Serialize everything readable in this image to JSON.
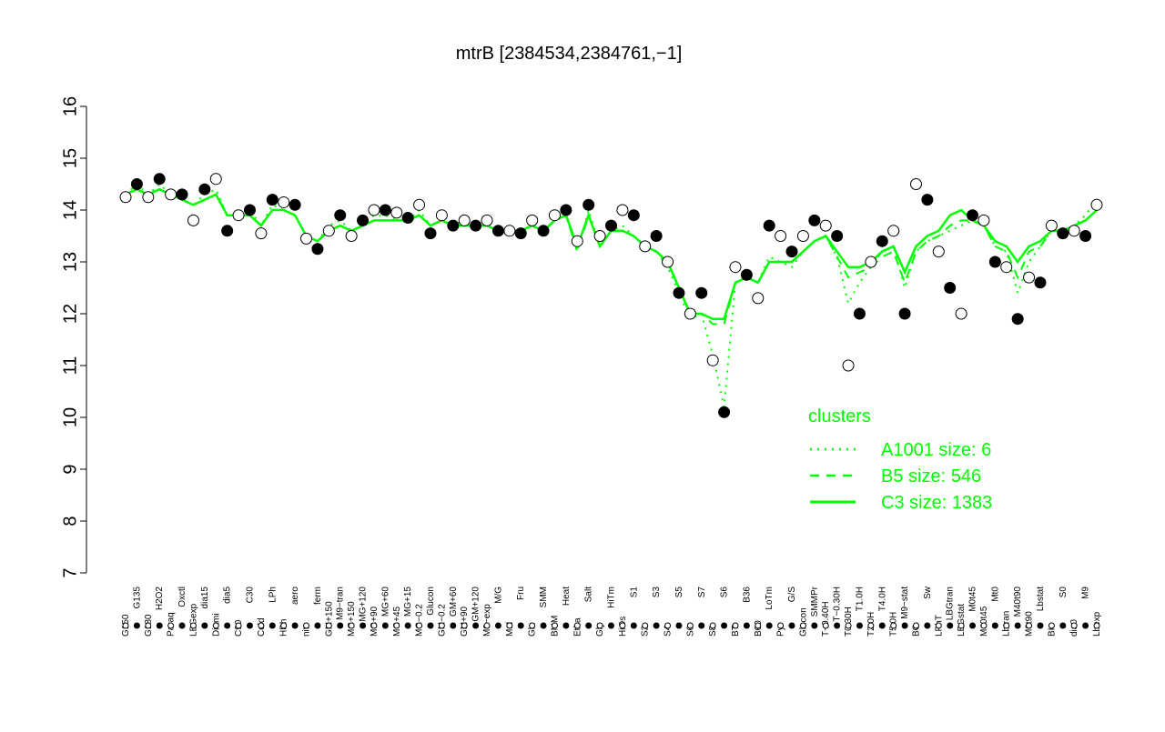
{
  "chart_data": {
    "type": "line",
    "title": "mtrB [2384534,2384761,−1]",
    "categories": [
      "G150",
      "G135",
      "G180",
      "H2O2",
      "Paraq",
      "Oxctl",
      "LBGexp",
      "dia15",
      "Diami",
      "dia5",
      "C90",
      "C30",
      "Cold",
      "LPh",
      "HPh",
      "aero",
      "nit",
      "ferm",
      "GM+150",
      "M9−tran",
      "MG+150",
      "MG+120",
      "MG+90",
      "MG+60",
      "MG+45",
      "MG+15",
      "MG−0.2",
      "Glucon",
      "GM−0.2",
      "GM+60",
      "GM+90",
      "GM+120",
      "M9−exp",
      "M/G",
      "Mal",
      "Fru",
      "Glu",
      "SMM",
      "BMM",
      "Heat",
      "Etha",
      "Salt",
      "Gly",
      "HiTm",
      "HiOs",
      "S1",
      "S2",
      "S3",
      "S4",
      "S5",
      "S6",
      "S7",
      "S8",
      "S6",
      "BT",
      "B36",
      "B60",
      "LoTm",
      "Pyr",
      "G/S",
      "Glucon",
      "SMMPr",
      "T−0.40H",
      "T−0.30H",
      "T0.30H",
      "T1.0H",
      "T2.0H",
      "T4.0H",
      "T5.0H",
      "M9−stat",
      "BC",
      "Sw",
      "LPhT",
      "LBGtran",
      "LBGstat",
      "M0t45",
      "M40t45",
      "Mt0",
      "Lbtran",
      "M40t90",
      "M0t90",
      "Lbstat",
      "BI",
      "S0",
      "dia0",
      "M9",
      "Lbexp"
    ],
    "values": [
      14.25,
      14.5,
      14.25,
      14.6,
      14.3,
      14.3,
      13.8,
      14.4,
      14.6,
      13.6,
      13.9,
      14.0,
      13.55,
      14.2,
      14.15,
      14.1,
      13.45,
      13.25,
      13.6,
      13.9,
      13.5,
      13.8,
      14.0,
      14.0,
      13.95,
      13.85,
      14.1,
      13.55,
      13.9,
      13.7,
      13.8,
      13.7,
      13.8,
      13.6,
      13.6,
      13.55,
      13.8,
      13.6,
      13.9,
      14.0,
      13.4,
      14.1,
      13.5,
      13.7,
      14.0,
      13.9,
      13.3,
      13.5,
      13.0,
      12.4,
      12.0,
      12.4,
      11.1,
      10.1,
      12.9,
      12.75,
      12.3,
      13.7,
      13.5,
      13.2,
      13.5,
      13.8,
      13.7,
      13.5,
      11.0,
      12.0,
      13.0,
      13.4,
      13.6,
      12.0,
      14.5,
      14.2,
      13.2,
      12.5,
      12.0,
      13.9,
      13.8,
      13.0,
      12.9,
      11.9,
      12.7,
      12.6,
      13.7,
      13.55,
      13.6,
      13.5,
      14.1
    ],
    "legend_title": "clusters",
    "series": [
      {
        "name": "A1001 size: 6",
        "color": "#00ff00",
        "dash": "dotted",
        "values": [
          14.3,
          14.5,
          14.3,
          14.5,
          14.3,
          14.2,
          14.1,
          14.3,
          14.4,
          13.9,
          13.9,
          14.0,
          13.7,
          14.1,
          14.0,
          13.9,
          13.5,
          13.4,
          13.7,
          13.8,
          13.6,
          13.7,
          13.9,
          13.9,
          13.8,
          13.8,
          14.0,
          13.7,
          13.8,
          13.7,
          13.8,
          13.7,
          13.7,
          13.6,
          13.6,
          13.6,
          13.7,
          13.6,
          13.8,
          13.9,
          13.2,
          14.0,
          13.3,
          13.6,
          13.7,
          13.5,
          13.3,
          13.2,
          12.9,
          12.4,
          11.9,
          12.0,
          11.2,
          10.2,
          12.6,
          12.7,
          12.6,
          13.1,
          13.0,
          12.9,
          13.2,
          13.4,
          13.5,
          13.1,
          12.2,
          12.6,
          12.9,
          13.2,
          13.3,
          12.5,
          13.2,
          13.4,
          13.5,
          13.6,
          13.7,
          13.8,
          13.7,
          13.3,
          13.2,
          12.4,
          13.0,
          13.3,
          13.6,
          13.6,
          13.7,
          13.9,
          14.2
        ]
      },
      {
        "name": "B5 size: 546",
        "color": "#00ff00",
        "dash": "dashed",
        "values": [
          14.3,
          14.4,
          14.3,
          14.4,
          14.3,
          14.2,
          14.1,
          14.2,
          14.3,
          13.9,
          13.9,
          13.9,
          13.7,
          14.0,
          14.0,
          13.9,
          13.5,
          13.4,
          13.6,
          13.7,
          13.6,
          13.7,
          13.8,
          13.8,
          13.8,
          13.8,
          13.9,
          13.7,
          13.8,
          13.7,
          13.7,
          13.7,
          13.7,
          13.6,
          13.6,
          13.6,
          13.7,
          13.6,
          13.8,
          13.9,
          13.2,
          13.9,
          13.3,
          13.6,
          13.6,
          13.5,
          13.3,
          13.2,
          13.0,
          12.5,
          12.0,
          12.0,
          11.8,
          11.8,
          12.6,
          12.7,
          12.6,
          13.0,
          13.0,
          13.0,
          13.2,
          13.4,
          13.5,
          13.1,
          12.7,
          12.8,
          12.9,
          13.1,
          13.2,
          12.6,
          13.2,
          13.4,
          13.5,
          13.7,
          13.8,
          13.8,
          13.7,
          13.3,
          13.2,
          12.7,
          13.2,
          13.3,
          13.6,
          13.6,
          13.7,
          13.8,
          14.0
        ]
      },
      {
        "name": "C3 size: 1383",
        "color": "#00ff00",
        "dash": "solid",
        "values": [
          14.3,
          14.4,
          14.3,
          14.4,
          14.3,
          14.2,
          14.1,
          14.2,
          14.3,
          13.9,
          13.9,
          13.9,
          13.7,
          14.0,
          14.0,
          13.9,
          13.5,
          13.4,
          13.6,
          13.7,
          13.6,
          13.7,
          13.8,
          13.8,
          13.8,
          13.8,
          13.9,
          13.7,
          13.8,
          13.7,
          13.7,
          13.7,
          13.7,
          13.6,
          13.6,
          13.6,
          13.7,
          13.6,
          13.8,
          13.9,
          13.3,
          13.9,
          13.3,
          13.6,
          13.6,
          13.5,
          13.3,
          13.2,
          13.0,
          12.5,
          12.0,
          12.0,
          11.9,
          11.9,
          12.6,
          12.7,
          12.6,
          13.0,
          13.0,
          13.0,
          13.2,
          13.4,
          13.5,
          13.2,
          12.9,
          12.9,
          13.0,
          13.2,
          13.3,
          12.8,
          13.3,
          13.5,
          13.6,
          13.9,
          14.0,
          13.8,
          13.7,
          13.4,
          13.3,
          13.0,
          13.3,
          13.4,
          13.6,
          13.6,
          13.7,
          13.8,
          14.0
        ]
      }
    ],
    "ylim": [
      7,
      16
    ],
    "yticks": [
      7,
      8,
      9,
      10,
      11,
      12,
      13,
      14,
      15,
      16
    ],
    "grid": false
  }
}
